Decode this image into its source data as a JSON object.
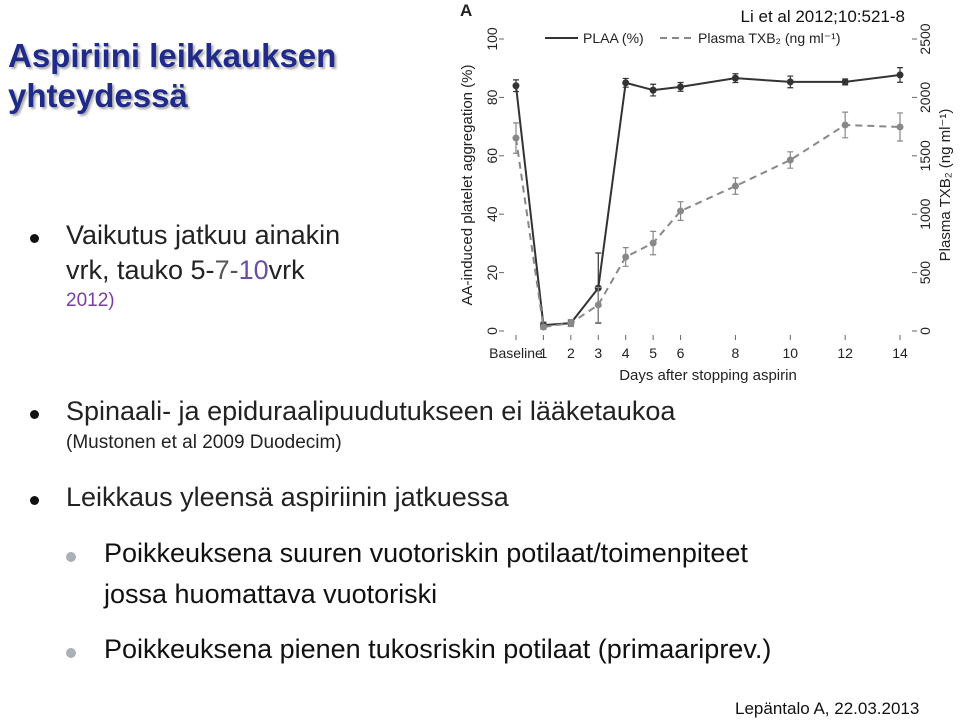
{
  "title": "Aspiriini leikkauksen yhteydessä",
  "bullets": [
    {
      "lines": [
        {
          "runs": [
            "Vaikutus jatkuu ainakin"
          ]
        },
        {
          "runs": [
            "vrk, tauko 5-",
            "7-",
            "10",
            "vrk"
          ]
        },
        {
          "runs": [
            "2012)"
          ]
        }
      ]
    },
    {
      "lines": [
        {
          "runs": [
            "Spinaali- ja epiduraalipuudutukseen ei lääketaukoa"
          ]
        },
        {
          "runs": [
            "(Mustonen et al 2009 Duodecim)"
          ]
        }
      ]
    },
    {
      "lines": [
        {
          "runs": [
            "Leikkaus yleensä aspiriinin jatkuessa"
          ]
        }
      ],
      "sub": [
        [
          "Poikkeuksena suuren vuotoriskin potilaat/toimenpiteet",
          "jossa huomattava vuotoriski"
        ],
        [
          "Poikkeuksena pienen tukosriskin potilaat (primaariprev.)"
        ]
      ]
    }
  ],
  "footer": "Lepäntalo A, 22.03.2013",
  "chart_data": {
    "type": "line",
    "panel": "A",
    "citation": "Li et al 2012;10:521-8",
    "x_label": "Days after stopping aspirin",
    "y_label": "AA-induced platelet aggregation (%)",
    "y2_label": "Plasma TXB₂ (ng ml⁻¹)",
    "x": [
      0,
      1,
      2,
      3,
      4,
      5,
      6,
      8,
      10,
      12,
      14
    ],
    "xlim": [
      -0.4,
      14.4
    ],
    "xticks": [
      {
        "value": 0,
        "label": "Baseline"
      },
      1,
      2,
      3,
      4,
      5,
      6,
      8,
      10,
      12,
      14
    ],
    "ylim": [
      0,
      100
    ],
    "yticks": [
      0,
      20,
      40,
      60,
      80,
      100
    ],
    "y2lim": [
      0,
      2500
    ],
    "y2ticks": [
      0,
      500,
      1000,
      1500,
      2000,
      2500
    ],
    "series": [
      {
        "name": "PLAA (%)",
        "color": "#333333",
        "dash": false,
        "values": [
          84,
          2,
          2.7,
          14.7,
          85,
          82.5,
          83.6,
          86.6,
          85.3,
          85.3,
          87.7
        ],
        "errors": [
          2,
          1,
          1,
          12,
          1.5,
          2,
          1.5,
          1.5,
          2,
          1,
          2.5
        ]
      },
      {
        "name": "Plasma TXB₂ (ng ml⁻¹)",
        "color": "#888888",
        "dash": true,
        "axis": "y2",
        "values": [
          1652,
          34,
          68,
          223,
          634,
          753,
          1027,
          1241,
          1464,
          1764,
          1747
        ],
        "errors": [
          130,
          20,
          30,
          150,
          80,
          100,
          80,
          70,
          70,
          110,
          120
        ]
      }
    ]
  }
}
